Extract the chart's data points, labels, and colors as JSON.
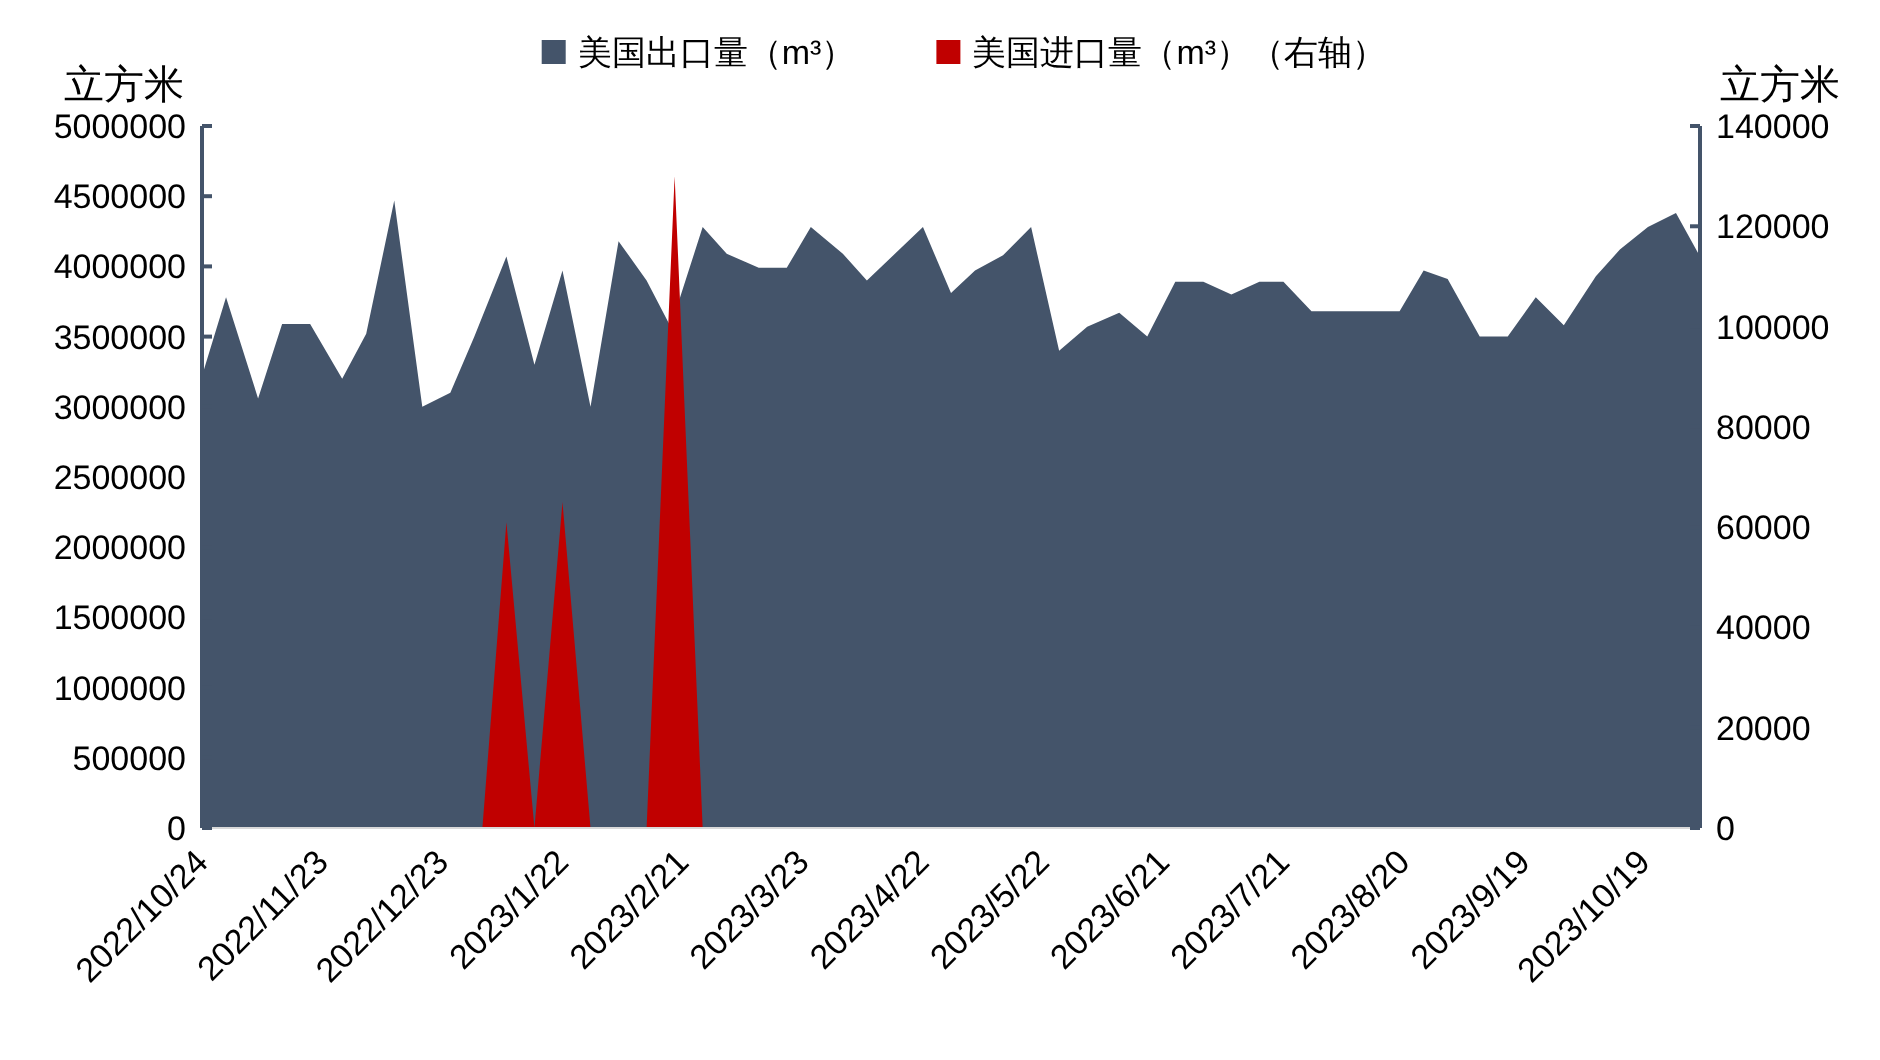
{
  "chart_data": {
    "type": "area",
    "ylabel": "立方米",
    "y2label": "立方米",
    "x": [
      "2022-10-24",
      "2022-10-30",
      "2022-11-07",
      "2022-11-13",
      "2022-11-20",
      "2022-11-28",
      "2022-12-04",
      "2022-12-11",
      "2022-12-18",
      "2022-12-25",
      "2022-12-31",
      "2023-01-08",
      "2023-01-15",
      "2023-01-22",
      "2023-01-29",
      "2023-02-05",
      "2023-02-12",
      "2023-02-18",
      "2023-02-26",
      "2023-03-04",
      "2023-03-12",
      "2023-03-19",
      "2023-03-25",
      "2023-04-02",
      "2023-04-08",
      "2023-04-15",
      "2023-04-22",
      "2023-04-29",
      "2023-05-05",
      "2023-05-12",
      "2023-05-19",
      "2023-05-26",
      "2023-06-02",
      "2023-06-10",
      "2023-06-17",
      "2023-06-24",
      "2023-07-01",
      "2023-07-08",
      "2023-07-15",
      "2023-07-21",
      "2023-07-28",
      "2023-08-19",
      "2023-08-25",
      "2023-08-31",
      "2023-09-08",
      "2023-09-15",
      "2023-09-22",
      "2023-09-29",
      "2023-10-07",
      "2023-10-13",
      "2023-10-20",
      "2023-10-27",
      "2023-11-02"
    ],
    "series": [
      {
        "name": "美国出口量（m³）",
        "color": "#44546a",
        "values": [
          3220000,
          3780000,
          3060000,
          3590000,
          3590000,
          3200000,
          3520000,
          4470000,
          3000000,
          3100000,
          3500000,
          4070000,
          3300000,
          3970000,
          3000000,
          4180000,
          3900000,
          3570000,
          4280000,
          4090000,
          3990000,
          3990000,
          4280000,
          4090000,
          3900000,
          4090000,
          4280000,
          3810000,
          3970000,
          4080000,
          4280000,
          3400000,
          3570000,
          3670000,
          3500000,
          3890000,
          3890000,
          3800000,
          3890000,
          3890000,
          3680000,
          3680000,
          3970000,
          3910000,
          3500000,
          3500000,
          3780000,
          3580000,
          3930000,
          4120000,
          4280000,
          4380000,
          4070000
        ]
      },
      {
        "name": "美国进口量（m³）（右轴）",
        "color": "#c00000",
        "axis": "y2",
        "x": [
          "2023-01-02",
          "2023-01-08",
          "2023-01-15",
          "2023-01-22",
          "2023-01-29",
          "2023-02-05",
          "2023-02-12",
          "2023-02-19",
          "2023-02-26"
        ],
        "values": [
          0,
          61000,
          0,
          65000,
          0,
          0,
          0,
          130000,
          0
        ]
      }
    ],
    "xlim": [
      "2022-10-24",
      "2023-11-02"
    ],
    "xticks": [
      {
        "value": "2022-10-24",
        "label": "2022/10/24"
      },
      {
        "value": "2022-11-23",
        "label": "2022/11/23"
      },
      {
        "value": "2022-12-23",
        "label": "2022/12/23"
      },
      {
        "value": "2023-01-22",
        "label": "2023/1/22"
      },
      {
        "value": "2023-02-21",
        "label": "2023/2/21"
      },
      {
        "value": "2023-03-23",
        "label": "2023/3/23"
      },
      {
        "value": "2023-04-22",
        "label": "2023/4/22"
      },
      {
        "value": "2023-05-22",
        "label": "2023/5/22"
      },
      {
        "value": "2023-06-21",
        "label": "2023/6/21"
      },
      {
        "value": "2023-07-21",
        "label": "2023/7/21"
      },
      {
        "value": "2023-08-20",
        "label": "2023/8/20"
      },
      {
        "value": "2023-09-19",
        "label": "2023/9/19"
      },
      {
        "value": "2023-10-19",
        "label": "2023/10/19"
      }
    ],
    "ylim": [
      0,
      5000000
    ],
    "yticks": [
      0,
      500000,
      1000000,
      1500000,
      2000000,
      2500000,
      3000000,
      3500000,
      4000000,
      4500000,
      5000000
    ],
    "y2lim": [
      0,
      140000
    ],
    "y2ticks": [
      0,
      20000,
      40000,
      60000,
      80000,
      100000,
      120000,
      140000
    ],
    "grid": false,
    "legend": "top"
  }
}
